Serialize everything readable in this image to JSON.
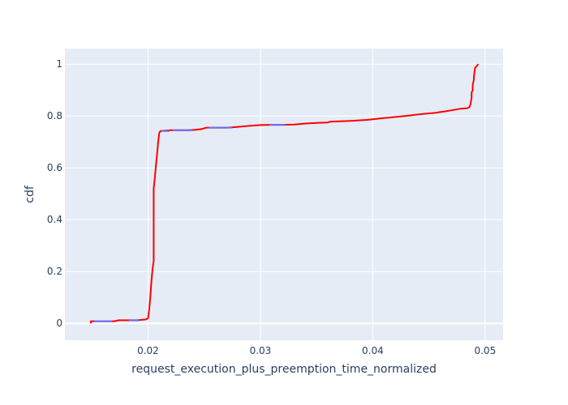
{
  "chart_data": {
    "type": "line",
    "title": "",
    "xlabel": "request_execution_plus_preemption_time_normalized",
    "ylabel": "cdf",
    "xlim": [
      0.0126,
      0.0516
    ],
    "ylim": [
      -0.065,
      1.06
    ],
    "x_ticks": [
      0.02,
      0.03,
      0.04,
      0.05
    ],
    "x_tick_labels": [
      "0.02",
      "0.03",
      "0.04",
      "0.05"
    ],
    "y_ticks": [
      0,
      0.2,
      0.4,
      0.6,
      0.8,
      1
    ],
    "y_tick_labels": [
      "0",
      "0.2",
      "0.4",
      "0.6",
      "0.8",
      "1"
    ],
    "grid": true,
    "colors": {
      "plot_background": "#e5ecf6",
      "grid": "#ffffff",
      "text": "#2a3f5f",
      "series_main": "#ff0000",
      "series_flat": "#636efa"
    },
    "series": [
      {
        "color": "#ff0000",
        "x": [
          0.0149,
          0.0149,
          0.0152,
          0.0158,
          0.0165,
          0.017,
          0.0174,
          0.018,
          0.019,
          0.0198,
          0.02,
          0.0201,
          0.0202,
          0.0203,
          0.0204,
          0.0205,
          0.0205,
          0.0205,
          0.0206,
          0.0207,
          0.0208,
          0.0209,
          0.021,
          0.0211,
          0.022,
          0.0225,
          0.0235,
          0.0242,
          0.0248,
          0.0252,
          0.0256,
          0.027,
          0.028,
          0.029,
          0.03,
          0.031,
          0.032,
          0.033,
          0.034,
          0.035,
          0.036,
          0.0362,
          0.038,
          0.0395,
          0.041,
          0.0425,
          0.0435,
          0.0445,
          0.0455,
          0.0465,
          0.047,
          0.0478,
          0.0484,
          0.0486,
          0.0487,
          0.0488,
          0.0488,
          0.0489,
          0.0489,
          0.049,
          0.049,
          0.0491,
          0.0492,
          0.0493,
          0.0494
        ],
        "y": [
          0.0,
          0.008,
          0.008,
          0.008,
          0.008,
          0.008,
          0.012,
          0.012,
          0.012,
          0.015,
          0.02,
          0.05,
          0.1,
          0.16,
          0.21,
          0.24,
          0.45,
          0.52,
          0.56,
          0.61,
          0.65,
          0.7,
          0.735,
          0.742,
          0.745,
          0.745,
          0.745,
          0.747,
          0.75,
          0.755,
          0.755,
          0.755,
          0.758,
          0.762,
          0.765,
          0.766,
          0.766,
          0.767,
          0.771,
          0.773,
          0.775,
          0.778,
          0.781,
          0.785,
          0.792,
          0.798,
          0.803,
          0.808,
          0.812,
          0.818,
          0.822,
          0.828,
          0.83,
          0.834,
          0.845,
          0.87,
          0.89,
          0.9,
          0.92,
          0.94,
          0.95,
          0.985,
          0.99,
          0.995,
          1.0
        ]
      },
      {
        "color": "#636efa",
        "segments": [
          [
            [
              0.0152,
              0.008
            ],
            [
              0.0168,
              0.008
            ]
          ],
          [
            [
              0.0183,
              0.012
            ],
            [
              0.0192,
              0.012
            ]
          ],
          [
            [
              0.0212,
              0.742
            ],
            [
              0.0219,
              0.742
            ]
          ],
          [
            [
              0.0222,
              0.745
            ],
            [
              0.0239,
              0.745
            ]
          ],
          [
            [
              0.0254,
              0.755
            ],
            [
              0.0275,
              0.755
            ]
          ],
          [
            [
              0.0308,
              0.766
            ],
            [
              0.0322,
              0.766
            ]
          ]
        ]
      }
    ]
  }
}
